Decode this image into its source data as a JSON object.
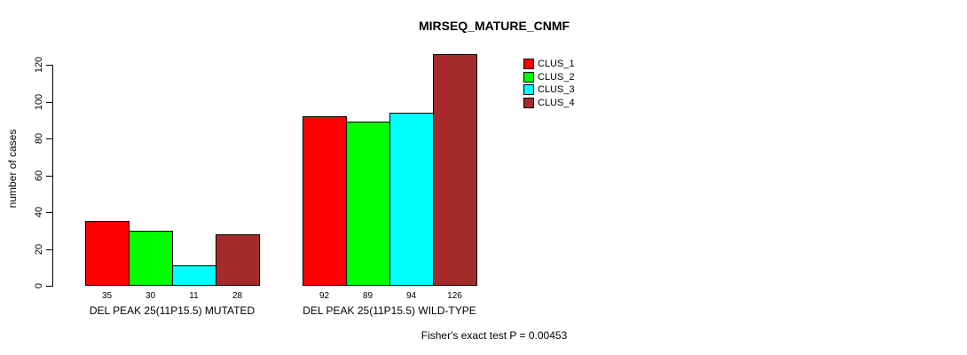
{
  "chart_data": {
    "type": "bar",
    "title": "MIRSEQ_MATURE_CNMF",
    "xlabel": "",
    "ylabel": "number of cases",
    "ylim": [
      0,
      120
    ],
    "yticks": [
      0,
      20,
      40,
      60,
      80,
      100,
      120
    ],
    "grid": false,
    "legend_position": "top-right",
    "categories": [
      "DEL PEAK 25(11P15.5) MUTATED",
      "DEL PEAK 25(11P15.5) WILD-TYPE"
    ],
    "series": [
      {
        "name": "CLUS_1",
        "color": "#ff0000",
        "values": [
          35,
          92
        ]
      },
      {
        "name": "CLUS_2",
        "color": "#00ff00",
        "values": [
          30,
          89
        ]
      },
      {
        "name": "CLUS_3",
        "color": "#00ffff",
        "values": [
          11,
          94
        ]
      },
      {
        "name": "CLUS_4",
        "color": "#a52a2a",
        "values": [
          28,
          126
        ]
      }
    ],
    "bar_value_labels": [
      [
        35,
        30,
        11,
        28
      ],
      [
        92,
        89,
        94,
        126
      ]
    ],
    "annotation": "Fisher's exact test P = 0.00453"
  },
  "colors": {
    "background": "#ffffff",
    "axis": "#000000",
    "text": "#000000",
    "bar_border": "#000000"
  }
}
